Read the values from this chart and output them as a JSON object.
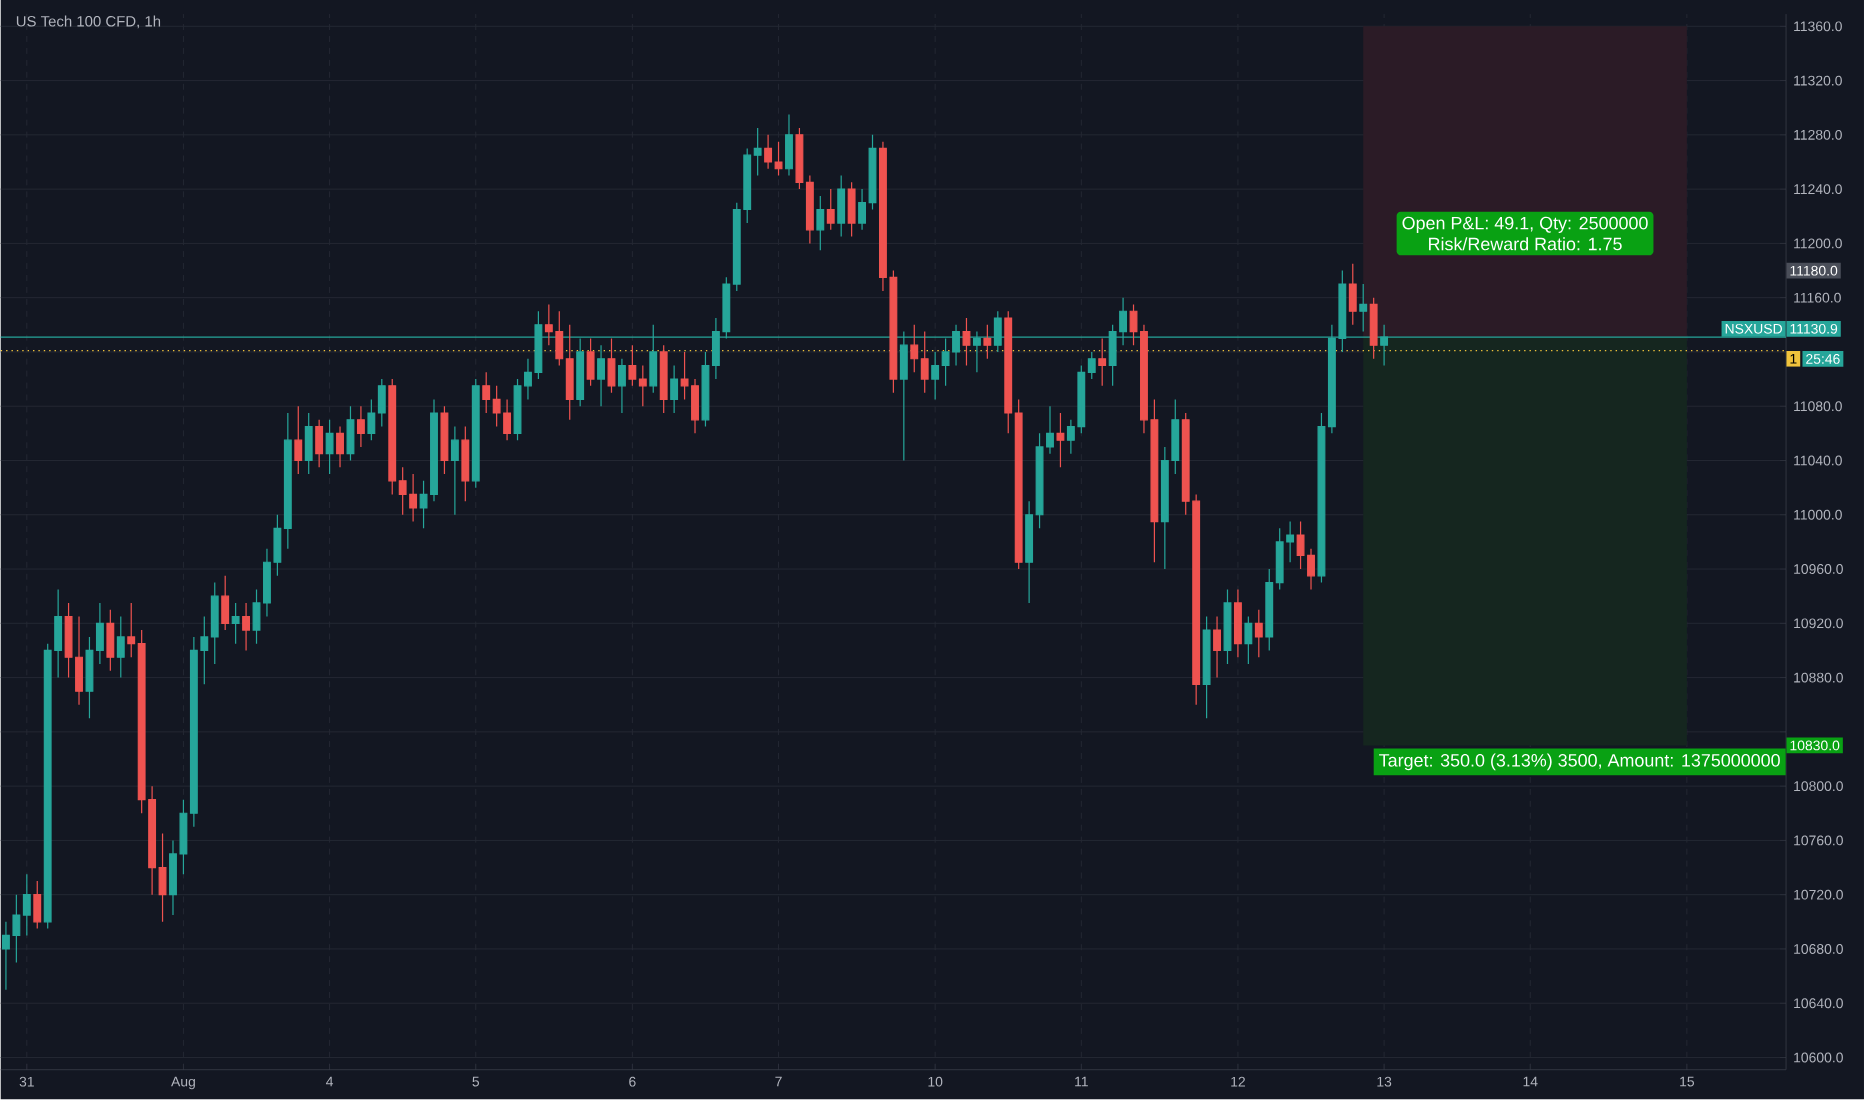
{
  "chart_data": {
    "type": "candlestick",
    "title": "US Tech 100 CFD, 1h",
    "categories": [
      null,
      null,
      "31",
      null,
      null,
      null,
      null,
      null,
      null,
      null,
      null,
      null,
      null,
      null,
      null,
      null,
      null,
      "Aug",
      null,
      null,
      null,
      null,
      null,
      null,
      null,
      null,
      null,
      null,
      null,
      null,
      null,
      "4",
      null,
      null,
      null,
      null,
      null,
      null,
      null,
      null,
      null,
      null,
      null,
      null,
      null,
      "5",
      null,
      null,
      null,
      null,
      null,
      null,
      null,
      null,
      null,
      null,
      null,
      null,
      null,
      null,
      "6",
      null,
      null,
      null,
      null,
      null,
      null,
      null,
      null,
      null,
      null,
      null,
      null,
      null,
      "7",
      null,
      null,
      null,
      null,
      null,
      null,
      null,
      null,
      null,
      null,
      null,
      null,
      null,
      null,
      "10",
      null,
      null,
      null,
      null,
      null,
      null,
      null,
      null,
      null,
      null,
      null,
      null,
      null,
      "11",
      null,
      null,
      null,
      null,
      null,
      null,
      null,
      null,
      null,
      null,
      null,
      null,
      null,
      null,
      "12",
      null,
      null,
      null,
      null,
      null,
      null,
      null,
      null,
      null,
      null,
      null,
      null,
      null,
      "13",
      null,
      null,
      null,
      null,
      null,
      null,
      null,
      null,
      null,
      null,
      null,
      null,
      null,
      "14",
      null,
      null,
      null,
      null,
      null,
      null,
      null,
      null,
      null,
      null,
      null,
      null,
      null,
      null,
      "15",
      null,
      null,
      null,
      null,
      null,
      null,
      null,
      null,
      null
    ],
    "ohlc": [
      [
        10680,
        10700,
        10650,
        10690
      ],
      [
        10690,
        10720,
        10670,
        10705
      ],
      [
        10705,
        10735,
        10690,
        10720
      ],
      [
        10720,
        10730,
        10695,
        10700
      ],
      [
        10700,
        10905,
        10695,
        10900
      ],
      [
        10900,
        10945,
        10880,
        10925
      ],
      [
        10925,
        10935,
        10880,
        10895
      ],
      [
        10895,
        10925,
        10860,
        10870
      ],
      [
        10870,
        10910,
        10850,
        10900
      ],
      [
        10900,
        10935,
        10890,
        10920
      ],
      [
        10920,
        10930,
        10885,
        10895
      ],
      [
        10895,
        10925,
        10880,
        10910
      ],
      [
        10910,
        10935,
        10895,
        10905
      ],
      [
        10905,
        10915,
        10780,
        10790
      ],
      [
        10790,
        10800,
        10720,
        10740
      ],
      [
        10740,
        10765,
        10700,
        10720
      ],
      [
        10720,
        10760,
        10705,
        10750
      ],
      [
        10750,
        10790,
        10735,
        10780
      ],
      [
        10780,
        10910,
        10770,
        10900
      ],
      [
        10900,
        10925,
        10875,
        10910
      ],
      [
        10910,
        10950,
        10890,
        10940
      ],
      [
        10940,
        10955,
        10915,
        10920
      ],
      [
        10920,
        10935,
        10905,
        10925
      ],
      [
        10925,
        10935,
        10900,
        10915
      ],
      [
        10915,
        10945,
        10905,
        10935
      ],
      [
        10935,
        10975,
        10925,
        10965
      ],
      [
        10965,
        11000,
        10955,
        10990
      ],
      [
        10990,
        11075,
        10975,
        11055
      ],
      [
        11055,
        11080,
        11030,
        11040
      ],
      [
        11040,
        11075,
        11030,
        11065
      ],
      [
        11065,
        11070,
        11035,
        11045
      ],
      [
        11045,
        11070,
        11030,
        11060
      ],
      [
        11060,
        11065,
        11035,
        11045
      ],
      [
        11045,
        11080,
        11040,
        11070
      ],
      [
        11070,
        11080,
        11050,
        11060
      ],
      [
        11060,
        11085,
        11055,
        11075
      ],
      [
        11075,
        11100,
        11065,
        11095
      ],
      [
        11095,
        11100,
        11015,
        11025
      ],
      [
        11025,
        11035,
        11000,
        11015
      ],
      [
        11015,
        11030,
        10995,
        11005
      ],
      [
        11005,
        11025,
        10990,
        11015
      ],
      [
        11015,
        11085,
        11010,
        11075
      ],
      [
        11075,
        11080,
        11030,
        11040
      ],
      [
        11040,
        11065,
        11000,
        11055
      ],
      [
        11055,
        11065,
        11010,
        11025
      ],
      [
        11025,
        11100,
        11020,
        11095
      ],
      [
        11095,
        11105,
        11075,
        11085
      ],
      [
        11085,
        11095,
        11065,
        11075
      ],
      [
        11075,
        11085,
        11055,
        11060
      ],
      [
        11060,
        11100,
        11055,
        11095
      ],
      [
        11095,
        11115,
        11085,
        11105
      ],
      [
        11105,
        11150,
        11100,
        11140
      ],
      [
        11140,
        11155,
        11125,
        11135
      ],
      [
        11135,
        11150,
        11110,
        11115
      ],
      [
        11115,
        11140,
        11070,
        11085
      ],
      [
        11085,
        11130,
        11080,
        11120
      ],
      [
        11120,
        11130,
        11095,
        11100
      ],
      [
        11100,
        11125,
        11080,
        11115
      ],
      [
        11115,
        11130,
        11090,
        11095
      ],
      [
        11095,
        11115,
        11075,
        11110
      ],
      [
        11110,
        11125,
        11095,
        11100
      ],
      [
        11100,
        11110,
        11080,
        11095
      ],
      [
        11095,
        11140,
        11090,
        11120
      ],
      [
        11120,
        11125,
        11075,
        11085
      ],
      [
        11085,
        11110,
        11075,
        11100
      ],
      [
        11100,
        11120,
        11085,
        11095
      ],
      [
        11095,
        11100,
        11060,
        11070
      ],
      [
        11070,
        11120,
        11065,
        11110
      ],
      [
        11110,
        11145,
        11100,
        11135
      ],
      [
        11135,
        11175,
        11130,
        11170
      ],
      [
        11170,
        11230,
        11165,
        11225
      ],
      [
        11225,
        11270,
        11215,
        11265
      ],
      [
        11265,
        11285,
        11250,
        11270
      ],
      [
        11270,
        11280,
        11255,
        11260
      ],
      [
        11260,
        11275,
        11250,
        11255
      ],
      [
        11255,
        11295,
        11250,
        11280
      ],
      [
        11280,
        11285,
        11240,
        11245
      ],
      [
        11245,
        11250,
        11200,
        11210
      ],
      [
        11210,
        11235,
        11195,
        11225
      ],
      [
        11225,
        11240,
        11210,
        11215
      ],
      [
        11215,
        11250,
        11205,
        11240
      ],
      [
        11240,
        11245,
        11205,
        11215
      ],
      [
        11215,
        11240,
        11210,
        11230
      ],
      [
        11230,
        11280,
        11225,
        11270
      ],
      [
        11270,
        11275,
        11165,
        11175
      ],
      [
        11175,
        11180,
        11090,
        11100
      ],
      [
        11100,
        11135,
        11040,
        11125
      ],
      [
        11125,
        11140,
        11105,
        11115
      ],
      [
        11115,
        11135,
        11090,
        11100
      ],
      [
        11100,
        11120,
        11085,
        11110
      ],
      [
        11110,
        11130,
        11095,
        11120
      ],
      [
        11120,
        11140,
        11110,
        11135
      ],
      [
        11135,
        11145,
        11110,
        11125
      ],
      [
        11125,
        11135,
        11105,
        11130
      ],
      [
        11130,
        11140,
        11115,
        11125
      ],
      [
        11125,
        11150,
        11120,
        11145
      ],
      [
        11145,
        11150,
        11060,
        11075
      ],
      [
        11075,
        11085,
        10960,
        10965
      ],
      [
        10965,
        11010,
        10935,
        11000
      ],
      [
        11000,
        11060,
        10990,
        11050
      ],
      [
        11050,
        11080,
        11045,
        11060
      ],
      [
        11060,
        11075,
        11035,
        11055
      ],
      [
        11055,
        11070,
        11045,
        11065
      ],
      [
        11065,
        11110,
        11060,
        11105
      ],
      [
        11105,
        11120,
        11100,
        11115
      ],
      [
        11115,
        11130,
        11095,
        11110
      ],
      [
        11110,
        11140,
        11095,
        11135
      ],
      [
        11135,
        11160,
        11125,
        11150
      ],
      [
        11150,
        11155,
        11125,
        11135
      ],
      [
        11135,
        11140,
        11060,
        11070
      ],
      [
        11070,
        11085,
        10965,
        10995
      ],
      [
        10995,
        11050,
        10960,
        11040
      ],
      [
        11040,
        11085,
        11030,
        11070
      ],
      [
        11070,
        11075,
        11000,
        11010
      ],
      [
        11010,
        11015,
        10860,
        10875
      ],
      [
        10875,
        10925,
        10850,
        10915
      ],
      [
        10915,
        10925,
        10880,
        10900
      ],
      [
        10900,
        10945,
        10890,
        10935
      ],
      [
        10935,
        10945,
        10895,
        10905
      ],
      [
        10905,
        10925,
        10890,
        10920
      ],
      [
        10920,
        10930,
        10895,
        10910
      ],
      [
        10910,
        10960,
        10900,
        10950
      ],
      [
        10950,
        10990,
        10945,
        10980
      ],
      [
        10980,
        10995,
        10965,
        10985
      ],
      [
        10985,
        10995,
        10960,
        10970
      ],
      [
        10970,
        10975,
        10945,
        10955
      ],
      [
        10955,
        11075,
        10950,
        11065
      ],
      [
        11065,
        11140,
        11060,
        11130
      ],
      [
        11130,
        11180,
        11120,
        11170
      ],
      [
        11170,
        11185,
        11140,
        11150
      ],
      [
        11150,
        11170,
        11135,
        11155
      ],
      [
        11155,
        11160,
        11115,
        11125
      ],
      [
        11125,
        11140,
        11110,
        11131
      ],
      null,
      null,
      null,
      null,
      null,
      null,
      null,
      null,
      null,
      null,
      null,
      null,
      null,
      null,
      null,
      null,
      null,
      null,
      null,
      null,
      null,
      null,
      null,
      null,
      null,
      null,
      null,
      null,
      null,
      null,
      null,
      null,
      null,
      null,
      null,
      null,
      null,
      null
    ],
    "ylim": [
      10591,
      11369
    ],
    "yticks": [
      {
        "value": 10600,
        "label": "10600.0"
      },
      {
        "value": 10640,
        "label": "10640.0"
      },
      {
        "value": 10680,
        "label": "10680.0"
      },
      {
        "value": 10720,
        "label": "10720.0"
      },
      {
        "value": 10760,
        "label": "10760.0"
      },
      {
        "value": 10800,
        "label": "10800.0"
      },
      {
        "value": 10840,
        "label": null
      },
      {
        "value": 10880,
        "label": "10880.0"
      },
      {
        "value": 10920,
        "label": "10920.0"
      },
      {
        "value": 10960,
        "label": "10960.0"
      },
      {
        "value": 11000,
        "label": "11000.0"
      },
      {
        "value": 11040,
        "label": "11040.0"
      },
      {
        "value": 11080,
        "label": "11080.0"
      },
      {
        "value": 11120,
        "label": null
      },
      {
        "value": 11160,
        "label": "11160.0"
      },
      {
        "value": 11200,
        "label": "11200.0"
      },
      {
        "value": 11240,
        "label": "11240.0"
      },
      {
        "value": 11280,
        "label": "11280.0"
      },
      {
        "value": 11320,
        "label": "11320.0"
      },
      {
        "value": 11360,
        "label": "11360.0"
      }
    ],
    "grid": true,
    "bands": [
      {
        "axis": "y",
        "from": 11130.9,
        "to": 11360,
        "color": "#2b1b26"
      },
      {
        "axis": "y",
        "from": 10830,
        "to": 11130.9,
        "color": "#15261f"
      }
    ],
    "ref_lines": [
      {
        "axis": "y",
        "value": 11130.9,
        "label": "11130.9",
        "color": "#26a69a",
        "line_style": "solid"
      },
      {
        "axis": "y",
        "value": 11121,
        "color": "#f0c33c",
        "line_style": "dotted"
      }
    ],
    "annotations": [
      "Open P&L: 49.1, Qty: 2500000",
      "Risk/Reward Ratio: 1.75",
      "Target: 350.0 (3.13%) 3500, Amount: 1375000000",
      "NSXUSD",
      "1",
      "25:46",
      "11180.0",
      "10830.0"
    ]
  }
}
